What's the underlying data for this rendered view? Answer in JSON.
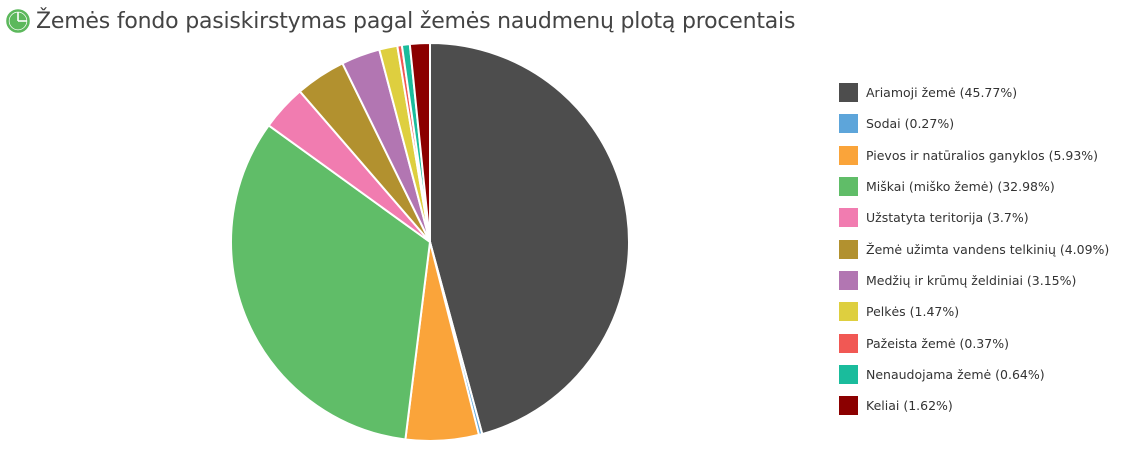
{
  "header": {
    "title": "Žemės fondo pasiskirstymas pagal žemės naudmenų plotą procentais",
    "icon": "pie-chart-icon",
    "icon_color": "#5cb85c"
  },
  "chart_data": {
    "type": "pie",
    "title": "Žemės fondo pasiskirstymas pagal žemės naudmenų plotą procentais",
    "legend_position": "right",
    "slices": [
      {
        "label": "Ariamoji žemė (45.77%)",
        "name": "Ariamoji žemė",
        "value": 45.77,
        "color": "#4d4d4d"
      },
      {
        "label": "Sodai (0.27%)",
        "name": "Sodai",
        "value": 0.27,
        "color": "#5da5da"
      },
      {
        "label": "Pievos ir natūralios ganyklos (5.93%)",
        "name": "Pievos ir natūralios ganyklos",
        "value": 5.93,
        "color": "#faa43a"
      },
      {
        "label": "Miškai (miško žemė) (32.98%)",
        "name": "Miškai (miško žemė)",
        "value": 32.98,
        "color": "#60bd68"
      },
      {
        "label": "Užstatyta teritorija (3.7%)",
        "name": "Užstatyta teritorija",
        "value": 3.7,
        "color": "#f17cb0"
      },
      {
        "label": "Žemė užimta vandens telkinių (4.09%)",
        "name": "Žemė užimta vandens telkinių",
        "value": 4.09,
        "color": "#b2912f"
      },
      {
        "label": "Medžių ir krūmų želdiniai (3.15%)",
        "name": "Medžių ir krūmų želdiniai",
        "value": 3.15,
        "color": "#b276b2"
      },
      {
        "label": "Pelkės (1.47%)",
        "name": "Pelkės",
        "value": 1.47,
        "color": "#decf3f"
      },
      {
        "label": "Pažeista žemė (0.37%)",
        "name": "Pažeista žemė",
        "value": 0.37,
        "color": "#f15854"
      },
      {
        "label": "Nenaudojama žemė (0.64%)",
        "name": "Nenaudojama žemė",
        "value": 0.64,
        "color": "#1abc9c"
      },
      {
        "label": "Keliai (1.62%)",
        "name": "Keliai",
        "value": 1.62,
        "color": "#8b0000"
      }
    ]
  }
}
